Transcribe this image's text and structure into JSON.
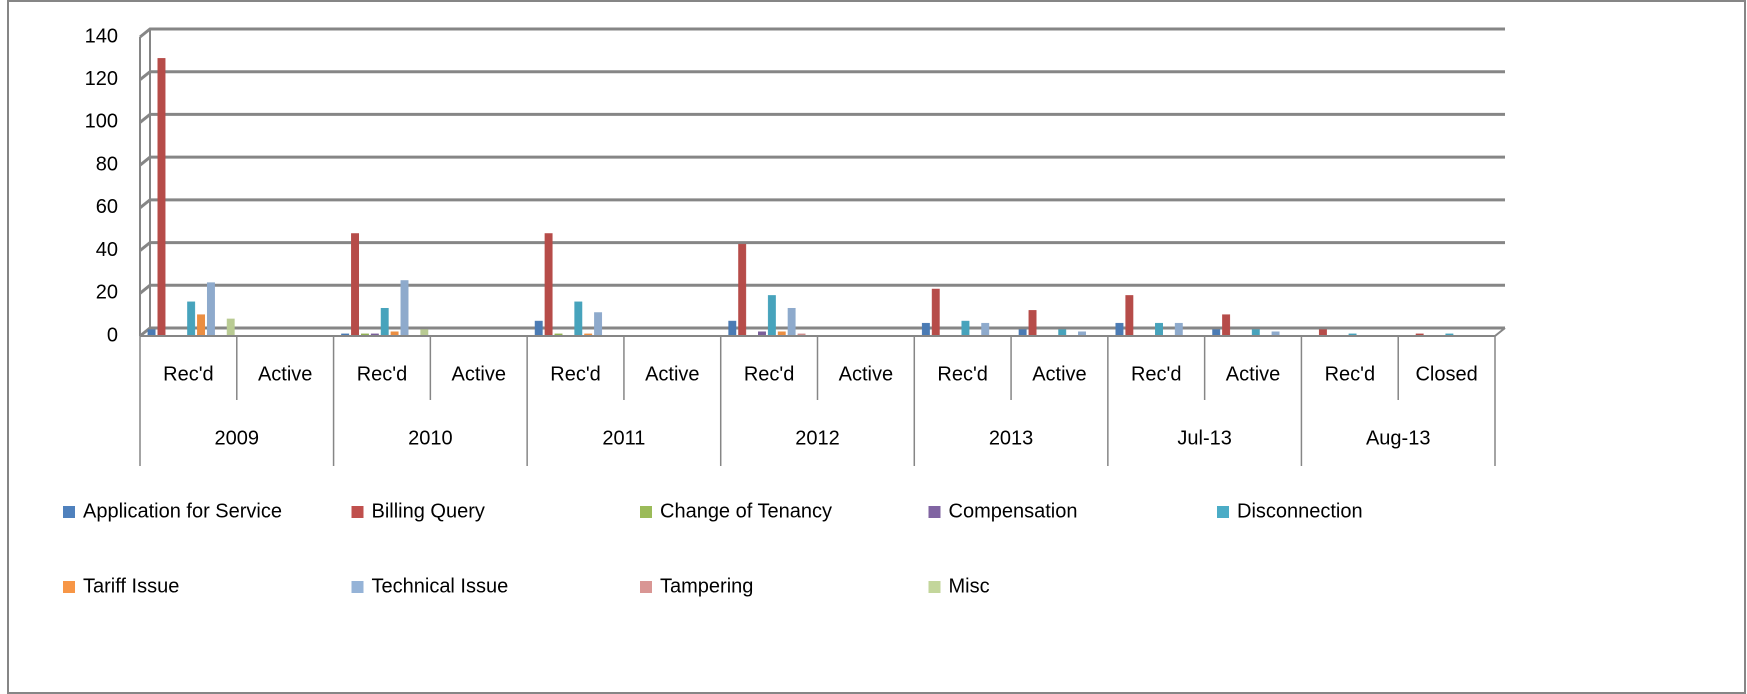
{
  "chart_data": {
    "type": "bar",
    "categories": [
      "Rec'd",
      "Active",
      "Rec'd",
      "Active",
      "Rec'd",
      "Active",
      "Rec'd",
      "Active",
      "Rec'd",
      "Active",
      "Rec'd",
      "Active",
      "Rec'd",
      "Closed"
    ],
    "category_groups": [
      "2009",
      "2010",
      "2011",
      "2012",
      "2013",
      "Jul-13",
      "Aug-13"
    ],
    "series": [
      {
        "name": "Application for Service",
        "color": "#4f81bd",
        "values": [
          3,
          0,
          1,
          0,
          7,
          0,
          7,
          0,
          6,
          3,
          6,
          3,
          0,
          0
        ]
      },
      {
        "name": "Billing Query",
        "color": "#c0504d",
        "values": [
          130,
          0,
          48,
          0,
          48,
          0,
          43,
          0,
          22,
          12,
          19,
          10,
          3,
          1
        ]
      },
      {
        "name": "Change of Tenancy",
        "color": "#9bbb59",
        "values": [
          0,
          0,
          1,
          0,
          1,
          0,
          0,
          0,
          0,
          0,
          0,
          0,
          0,
          0
        ]
      },
      {
        "name": "Compensation",
        "color": "#8064a2",
        "values": [
          0,
          0,
          1,
          0,
          0,
          0,
          2,
          0,
          0,
          0,
          0,
          0,
          0,
          0
        ]
      },
      {
        "name": "Disconnection",
        "color": "#4bacc6",
        "values": [
          16,
          0,
          13,
          0,
          16,
          0,
          19,
          0,
          7,
          3,
          6,
          3,
          1,
          1
        ]
      },
      {
        "name": "Tariff Issue",
        "color": "#f79646",
        "values": [
          10,
          0,
          2,
          0,
          1,
          0,
          2,
          0,
          0,
          0,
          0,
          0,
          0,
          0
        ]
      },
      {
        "name": "Technical Issue",
        "color": "#95b3d7",
        "values": [
          25,
          0,
          26,
          0,
          11,
          0,
          13,
          0,
          6,
          2,
          6,
          2,
          0,
          0
        ]
      },
      {
        "name": "Tampering",
        "color": "#d99694",
        "values": [
          0,
          0,
          0,
          0,
          0,
          0,
          1,
          0,
          0,
          0,
          0,
          0,
          0,
          0
        ]
      },
      {
        "name": "Misc",
        "color": "#c3d69b",
        "values": [
          8,
          0,
          3,
          0,
          0,
          0,
          0,
          0,
          0,
          0,
          0,
          0,
          0,
          0
        ]
      }
    ],
    "ylim": [
      0,
      140
    ],
    "yticks": [
      0,
      20,
      40,
      60,
      80,
      100,
      120,
      140
    ],
    "grid": true,
    "legend": "bottom"
  }
}
